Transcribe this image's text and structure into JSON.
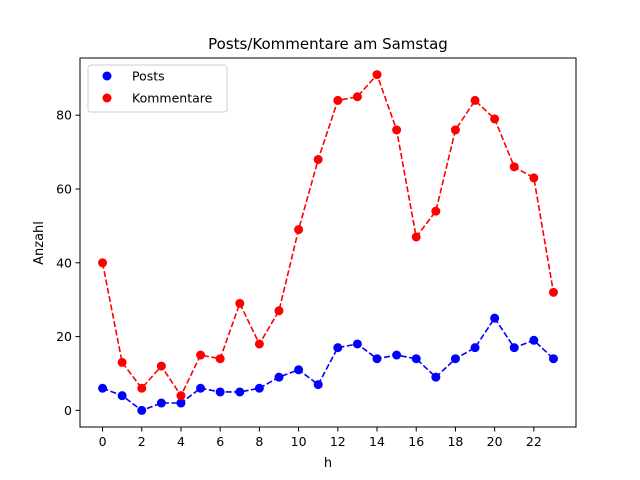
{
  "chart_data": {
    "type": "line",
    "title": "Posts/Kommentare am Samstag",
    "xlabel": "h",
    "ylabel": "Anzahl",
    "x": [
      0,
      1,
      2,
      3,
      4,
      5,
      6,
      7,
      8,
      9,
      10,
      11,
      12,
      13,
      14,
      15,
      16,
      17,
      18,
      19,
      20,
      21,
      22,
      23
    ],
    "xlim": [
      -1.15,
      24.15
    ],
    "ylim": [
      -4.5,
      95.5
    ],
    "xticks": [
      0,
      2,
      4,
      6,
      8,
      10,
      12,
      14,
      16,
      18,
      20,
      22
    ],
    "yticks": [
      0,
      20,
      40,
      60,
      80
    ],
    "grid": false,
    "legend_position": "top-left",
    "series": [
      {
        "name": "Posts",
        "color": "#0000ff",
        "line_style": "dashed",
        "marker": "circle",
        "values": [
          6,
          4,
          0,
          2,
          2,
          6,
          5,
          5,
          6,
          9,
          11,
          7,
          17,
          18,
          14,
          15,
          14,
          9,
          14,
          17,
          25,
          17,
          19,
          14
        ]
      },
      {
        "name": "Kommentare",
        "color": "#ff0000",
        "line_style": "dashed",
        "marker": "circle",
        "values": [
          40,
          13,
          6,
          12,
          4,
          15,
          14,
          29,
          18,
          27,
          49,
          68,
          84,
          85,
          91,
          76,
          47,
          54,
          76,
          84,
          79,
          66,
          63,
          32
        ]
      }
    ]
  }
}
